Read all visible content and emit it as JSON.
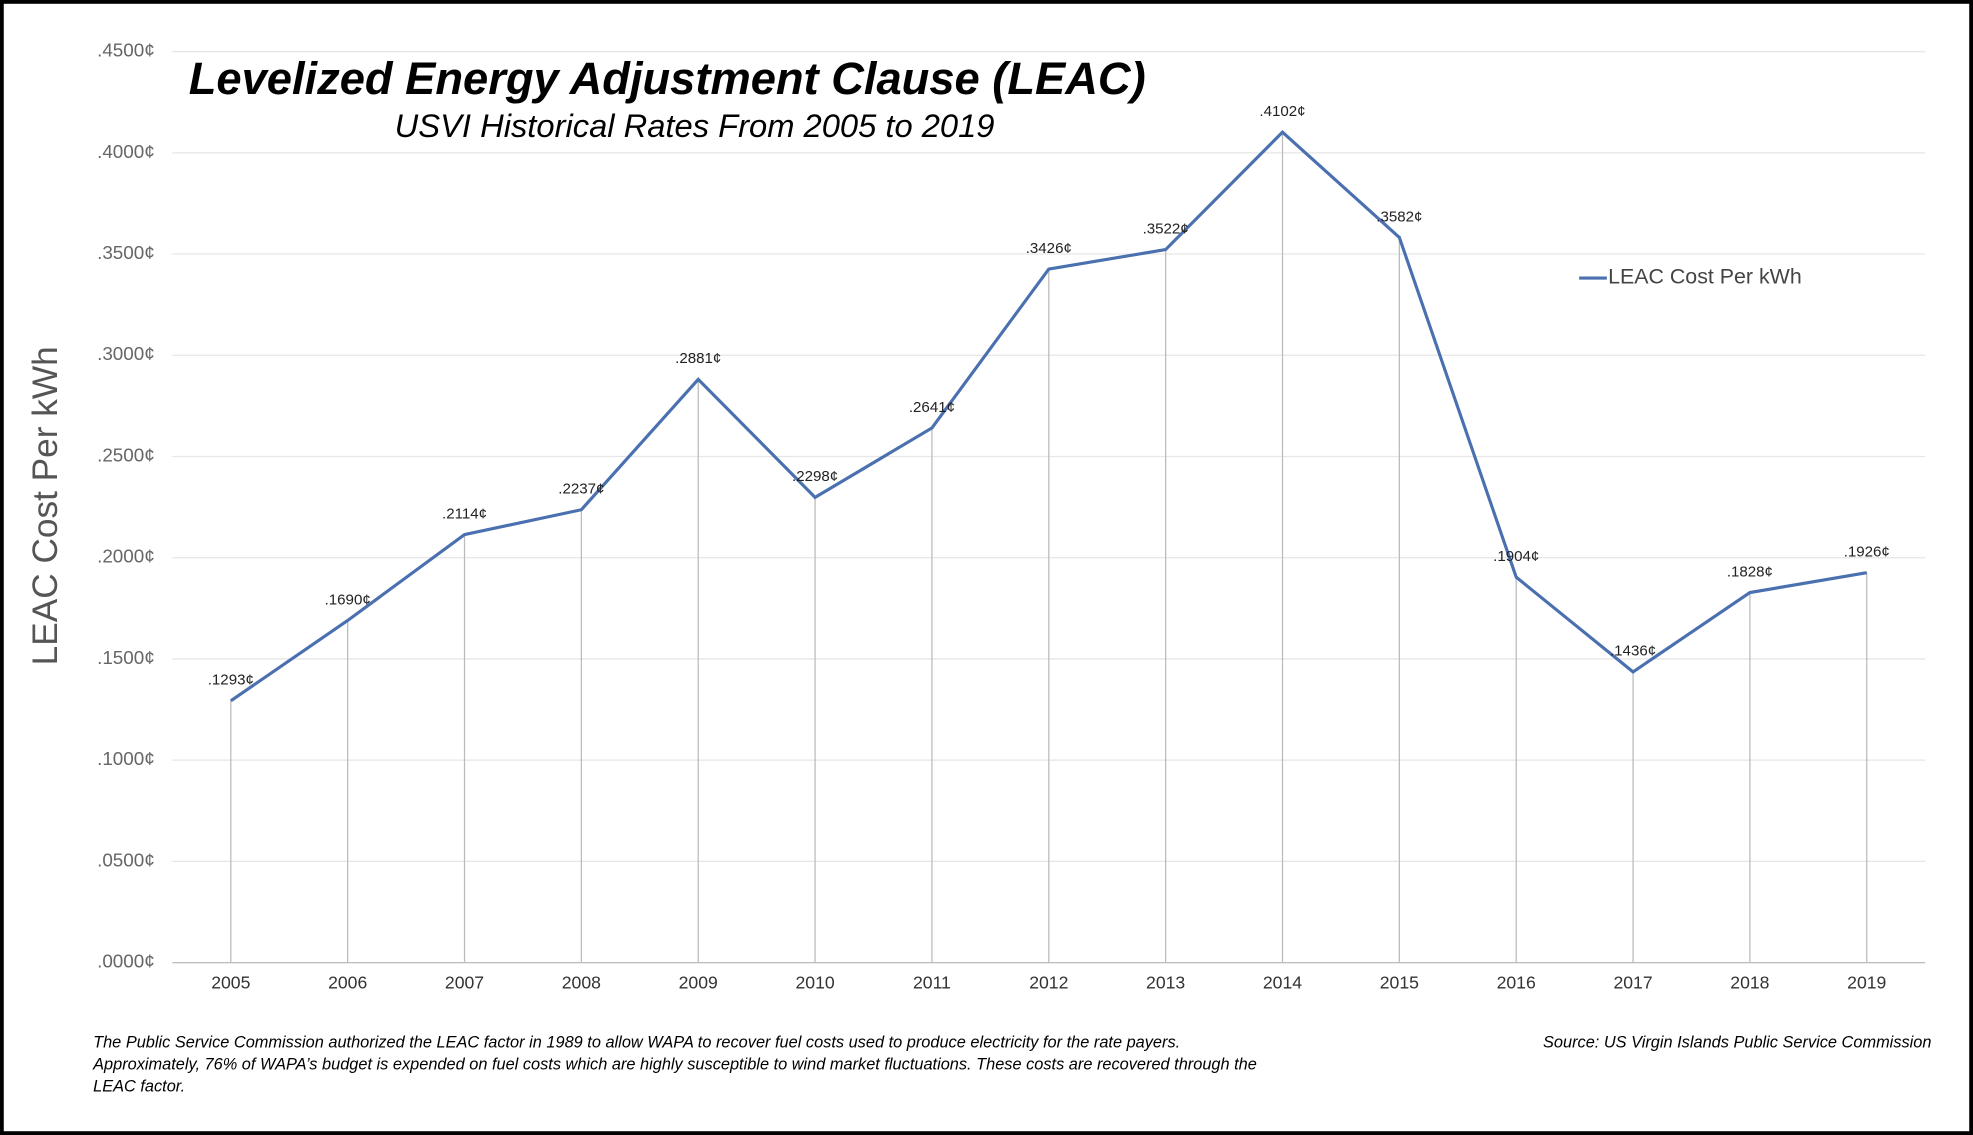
{
  "chart_data": {
    "type": "line",
    "title": "Levelized Energy Adjustment Clause (LEAC)",
    "subtitle": "USVI Historical Rates From 2005 to 2019",
    "y_label": "LEAC Cost Per kWh",
    "categories": [
      "2005",
      "2006",
      "2007",
      "2008",
      "2009",
      "2010",
      "2011",
      "2012",
      "2013",
      "2014",
      "2015",
      "2016",
      "2017",
      "2018",
      "2019"
    ],
    "series": [
      {
        "name": "LEAC Cost Per kWh",
        "color": "#4a70b0",
        "values": [
          0.1293,
          0.169,
          0.2114,
          0.2237,
          0.2881,
          0.2298,
          0.2641,
          0.3426,
          0.3522,
          0.4102,
          0.3582,
          0.1904,
          0.1436,
          0.1828,
          0.1926
        ],
        "value_labels": [
          ".1293¢",
          ".1690¢",
          ".2114¢",
          ".2237¢",
          ".2881¢",
          ".2298¢",
          ".2641¢",
          ".3426¢",
          ".3522¢",
          ".4102¢",
          ".3582¢",
          ".1904¢",
          ".1436¢",
          ".1828¢",
          ".1926¢"
        ]
      }
    ],
    "ylim": [
      0,
      0.45
    ],
    "yticks": [
      {
        "value": 0,
        "label": ".0000¢"
      },
      {
        "value": 0.05,
        "label": ".0500¢"
      },
      {
        "value": 0.1,
        "label": ".1000¢"
      },
      {
        "value": 0.15,
        "label": ".1500¢"
      },
      {
        "value": 0.2,
        "label": ".2000¢"
      },
      {
        "value": 0.25,
        "label": ".2500¢"
      },
      {
        "value": 0.3,
        "label": ".3000¢"
      },
      {
        "value": 0.35,
        "label": ".3500¢"
      },
      {
        "value": 0.4,
        "label": ".4000¢"
      },
      {
        "value": 0.45,
        "label": ".4500¢"
      }
    ],
    "grid": true,
    "legend": "right",
    "footnote": [
      "The Public Service Commission authorized the LEAC factor in 1989 to allow WAPA to recover fuel costs used to produce  electricity for the rate payers.",
      "Approximately, 76% of WAPA’s budget is expended on fuel costs which are highly susceptible to wind market fluctuations.  These costs are recovered through the",
      "LEAC factor."
    ],
    "source": "Source: US Virgin Islands Public Service Commission"
  }
}
